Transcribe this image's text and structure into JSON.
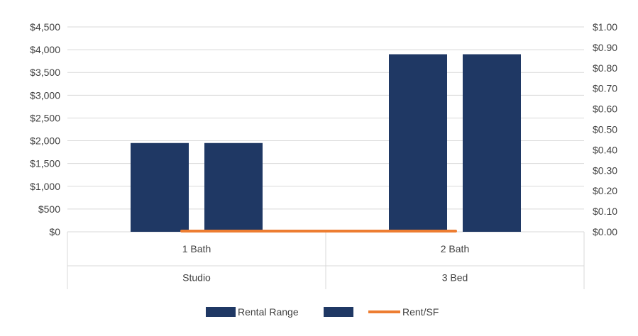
{
  "chart_data": {
    "type": "bar",
    "categories": [
      {
        "sub": "1 Bath",
        "group": "Studio"
      },
      {
        "sub": "2 Bath",
        "group": "3 Bed"
      }
    ],
    "series": [
      {
        "name": "Rental Range",
        "kind": "bar",
        "axis": "left",
        "color": "#1f3864",
        "values": [
          1950,
          3900
        ]
      },
      {
        "name": "",
        "kind": "bar",
        "axis": "left",
        "color": "#1f3864",
        "values": [
          1950,
          3900
        ]
      },
      {
        "name": "Rent/SF",
        "kind": "line",
        "axis": "right",
        "color": "#ed7d31",
        "values": [
          0,
          0
        ]
      }
    ],
    "y_left": {
      "min": 0,
      "max": 4500,
      "step": 500,
      "tick_labels": [
        "$0",
        "$500",
        "$1,000",
        "$1,500",
        "$2,000",
        "$2,500",
        "$3,000",
        "$3,500",
        "$4,000",
        "$4,500"
      ]
    },
    "y_right": {
      "min": 0,
      "max": 1.0,
      "step": 0.1,
      "tick_labels": [
        "$0.00",
        "$0.10",
        "$0.20",
        "$0.30",
        "$0.40",
        "$0.50",
        "$0.60",
        "$0.70",
        "$0.80",
        "$0.90",
        "$1.00"
      ]
    },
    "grid": true,
    "legend": {
      "position": "bottom",
      "entries": [
        {
          "label": "Rental Range",
          "kind": "bar",
          "color": "#1f3864"
        },
        {
          "label": "",
          "kind": "bar",
          "color": "#1f3864"
        },
        {
          "label": "Rent/SF",
          "kind": "line",
          "color": "#ed7d31"
        }
      ]
    },
    "colors": {
      "grid": "#d9d9d9",
      "text": "#404040"
    }
  }
}
